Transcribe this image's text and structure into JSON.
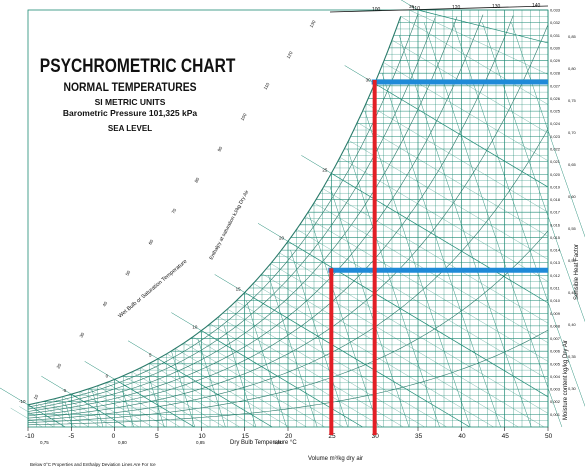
{
  "title": {
    "main": "PSYCHROMETRIC CHART",
    "sub": "NORMAL TEMPERATURES",
    "units": "SI METRIC UNITS",
    "pressure": "Barometric Pressure 101,325 kPa",
    "level": "SEA LEVEL"
  },
  "axes": {
    "x_label": "Dry Bulb Temperature  °C",
    "volume_label": "Volume m³/kg dry air",
    "right_label": "Moisture content  kg/kg Dry Air",
    "right_outer_label": "Sensible Heat Factor",
    "wetbulb_label": "Wet Bulb or Saturation Temperature",
    "enthalpy_label": "Enthalpy at saturation  kJ/kg Dry Air",
    "footnote": "Below 0°C  Properties and Enthalpy Deviation Lines Are For Ice",
    "x_ticks": [
      "-10",
      "-5",
      "0",
      "5",
      "10",
      "15",
      "20",
      "25",
      "30",
      "35",
      "40",
      "45",
      "50"
    ],
    "volume_ticks": [
      "0,75",
      "0,80",
      "0,85",
      "0,90"
    ],
    "w_ticks": [
      "0,001",
      "0,002",
      "0,003",
      "0,004",
      "0,005",
      "0,006",
      "0,007",
      "0,008",
      "0,009",
      "0,010",
      "0,011",
      "0,012",
      "0,013",
      "0,014",
      "0,015",
      "0,016",
      "0,017",
      "0,018",
      "0,019",
      "0,020",
      "0,021",
      "0,022",
      "0,023",
      "0,024",
      "0,025",
      "0,026",
      "0,027",
      "0,028",
      "0,029",
      "0,030",
      "0,031",
      "0,032",
      "0,033"
    ],
    "wetbulb_ticks": [
      "-10",
      "-5",
      "0",
      "5",
      "10",
      "15",
      "20",
      "25",
      "30",
      "35"
    ],
    "enthalpy_ticks": [
      "10",
      "20",
      "30",
      "40",
      "50",
      "60",
      "70",
      "80",
      "90",
      "100",
      "110",
      "120",
      "130"
    ],
    "top_ticks": [
      "100",
      "110",
      "120",
      "130",
      "140"
    ],
    "shf_ticks": [
      "0,85",
      "0,80",
      "0,75",
      "0,70",
      "0,65",
      "0,60",
      "0,55",
      "0,50",
      "0,45",
      "0,40",
      "0,35",
      "0,30"
    ]
  },
  "colors": {
    "grid": "#1e8a74",
    "curve": "#2a7a6a",
    "blue_marker": "#1f8ad8",
    "red_marker": "#e21f26",
    "text": "#111111"
  },
  "chart_data": {
    "type": "psychrometric",
    "x_unit": "°C dry bulb",
    "y_unit": "kg/kg dry air",
    "xlim": [
      -10,
      50
    ],
    "ylim": [
      0,
      0.033
    ],
    "markers": [
      {
        "dry_bulb": 25,
        "humidity_ratio": 0.0124
      },
      {
        "dry_bulb": 30,
        "humidity_ratio": 0.0273
      }
    ]
  }
}
